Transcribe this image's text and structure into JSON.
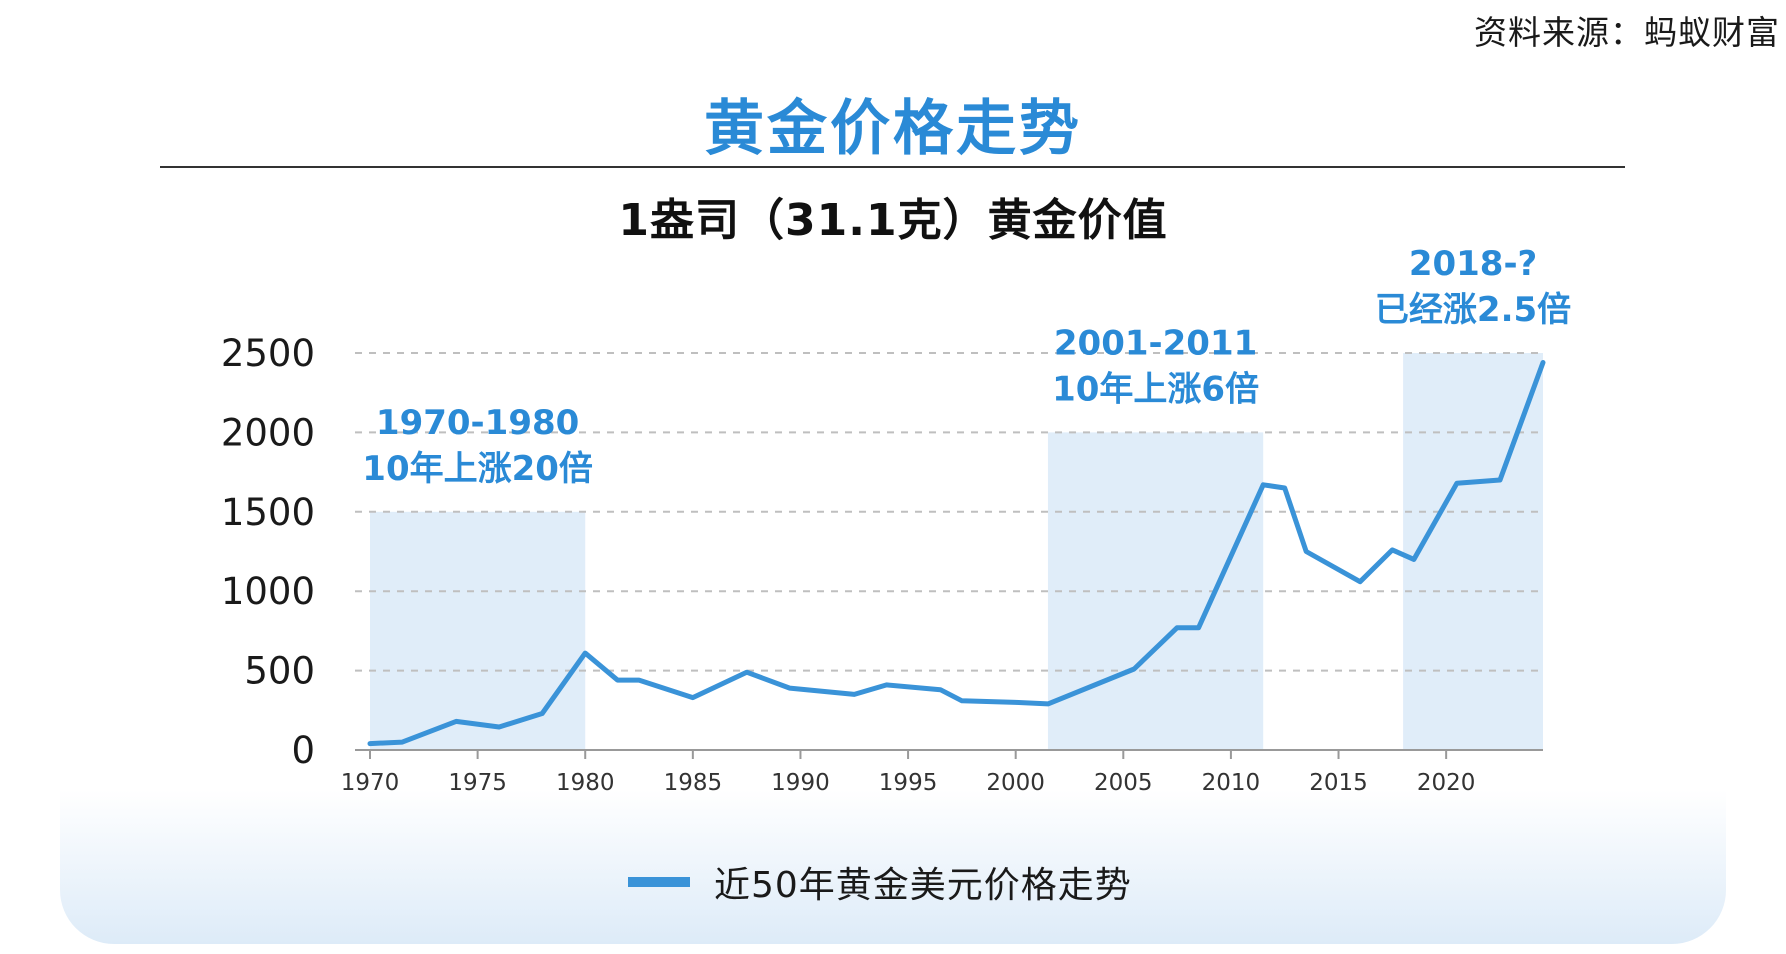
{
  "source": "资料来源：蚂蚁财富",
  "title": "黄金价格走势",
  "subtitle": "1盎司（31.1克）黄金价值",
  "chart_data": {
    "type": "line",
    "title": "黄金价格走势",
    "subtitle": "1盎司（31.1克）黄金价值",
    "xlabel": "",
    "ylabel": "",
    "xlim": [
      1970,
      2024.5
    ],
    "ylim": [
      0,
      2500
    ],
    "x_ticks": [
      1970,
      1975,
      1980,
      1985,
      1990,
      1995,
      2000,
      2005,
      2010,
      2015,
      2020
    ],
    "y_ticks": [
      0,
      500,
      1000,
      1500,
      2000,
      2500
    ],
    "grid": "horizontal dashed",
    "legend_position": "bottom",
    "series": [
      {
        "name": "近50年黄金美元价格走势",
        "color": "#3a93d8",
        "x": [
          1970,
          1971.5,
          1974,
          1976,
          1978,
          1980,
          1981.5,
          1982.5,
          1985,
          1987.5,
          1989.5,
          1992.5,
          1994,
          1996.5,
          1997.5,
          2000,
          2001.5,
          2005.5,
          2007.5,
          2008.5,
          2011.5,
          2012.5,
          2013.5,
          2016,
          2017.5,
          2018.5,
          2020.5,
          2022.5,
          2024.5
        ],
        "y": [
          40,
          50,
          180,
          145,
          230,
          610,
          440,
          440,
          330,
          490,
          390,
          350,
          410,
          380,
          310,
          300,
          290,
          510,
          770,
          770,
          1670,
          1650,
          1250,
          1060,
          1260,
          1200,
          1680,
          1700,
          2440
        ]
      }
    ],
    "highlight_regions": [
      {
        "x0": 1970,
        "x1": 1980,
        "y1": 1500,
        "label_line1": "1970-1980",
        "label_line2": "10年上涨20倍"
      },
      {
        "x0": 2001.5,
        "x1": 2011.5,
        "y1": 2000,
        "label_line1": "2001-2011",
        "label_line2": "10年上涨6倍"
      },
      {
        "x0": 2018,
        "x1": 2024.5,
        "y1": 2500,
        "label_line1": "2018-?",
        "label_line2": "已经涨2.5倍"
      }
    ]
  },
  "legend": {
    "label": "近50年黄金美元价格走势"
  },
  "colors": {
    "accent": "#2a8ad6",
    "line": "#3a93d8",
    "highlight_fill": "#ddebf8",
    "grid": "#bfbfbf",
    "axis": "#999999"
  }
}
